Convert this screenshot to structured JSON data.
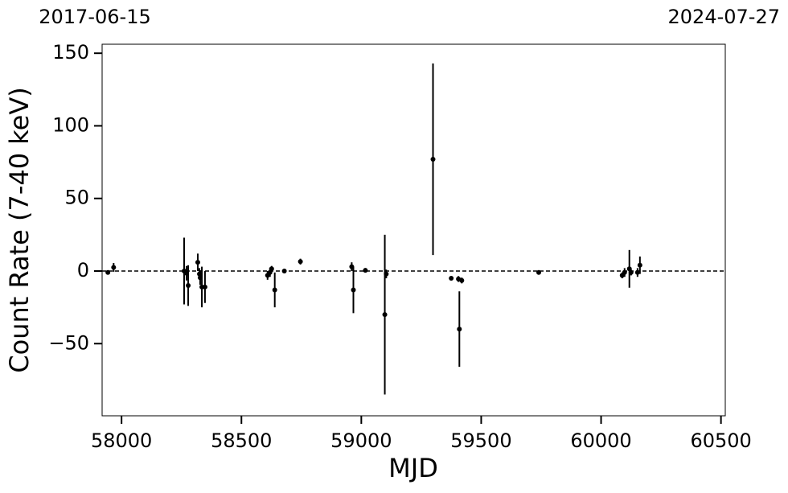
{
  "chart_data": {
    "type": "errorbar",
    "xlabel": "MJD",
    "ylabel": "Count Rate (7-40 keV)",
    "top_labels": [
      "2017-06-15",
      "2024-07-27"
    ],
    "xlim": [
      57919,
      60518
    ],
    "ylim": [
      -99.7,
      156.2
    ],
    "xticks": [
      58000,
      58500,
      59000,
      59500,
      60000,
      60500
    ],
    "yticks": [
      {
        "value": -50,
        "label": "−50"
      },
      0,
      50,
      100,
      150
    ],
    "hline": 0,
    "series": [
      {
        "color": "#000000",
        "x": [
          57943,
          57967,
          58261,
          58271,
          58278,
          58318,
          58325,
          58328,
          58335,
          58348,
          58609,
          58619,
          58626,
          58639,
          58679,
          58746,
          58960,
          58967,
          59017,
          59098,
          59104,
          59299,
          59375,
          59405,
          59409,
          59419,
          59740,
          60088,
          60098,
          60118,
          60125,
          60152,
          60162
        ],
        "values": [
          -1,
          2.5,
          0,
          -1.5,
          -10,
          6,
          -2,
          -4.5,
          -11,
          -11,
          -3,
          -1,
          1.5,
          -13,
          0,
          6.5,
          3,
          -13,
          0.5,
          -30,
          -2,
          77,
          -5,
          -5.5,
          -40,
          -6.5,
          -1,
          -3,
          -1,
          1.5,
          -1,
          -1,
          4
        ],
        "errors": [
          1,
          3,
          23,
          5,
          14,
          6,
          4,
          5,
          14,
          11,
          3,
          3,
          2,
          12,
          1,
          2,
          3,
          16,
          1.5,
          55,
          3,
          66,
          1,
          2,
          26,
          2,
          1,
          2,
          3,
          13,
          2,
          3,
          6
        ]
      }
    ]
  }
}
